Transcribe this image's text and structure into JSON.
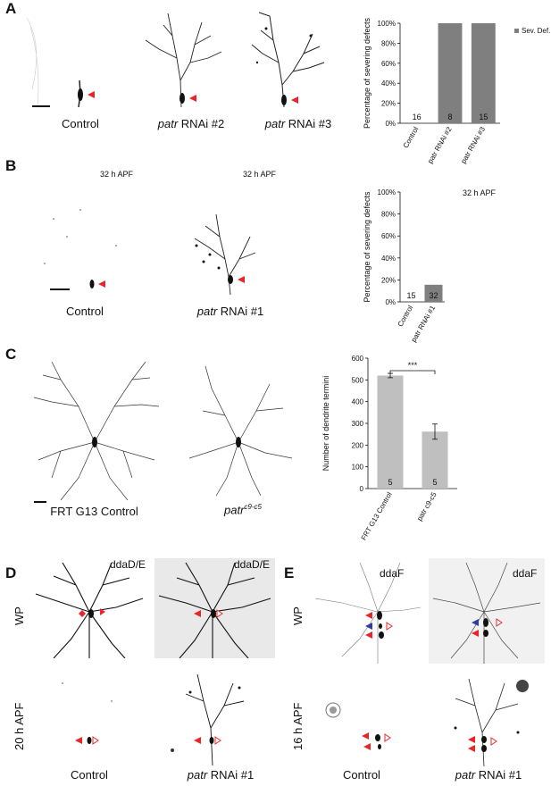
{
  "panels": {
    "A": {
      "letter": "A",
      "labels": [
        "Control",
        "patr",
        "RNAi #2",
        "patr",
        "RNAi #3"
      ]
    },
    "B": {
      "letter": "B",
      "time_label_1": "32 h APF",
      "time_label_2": "32 h APF",
      "labels": [
        "Control",
        "patr",
        "RNAi #1"
      ]
    },
    "C": {
      "letter": "C",
      "label_control": "FRT G13 Control",
      "label_mut": "patr",
      "label_mut_sup": "c9-c5"
    },
    "D": {
      "letter": "D",
      "cell_label_1": "ddaD/E",
      "cell_label_2": "ddaD/E",
      "row_label_1": "WP",
      "row_label_2": "20 h APF",
      "label_control": "Control",
      "label_patr": "patr",
      "label_rnai": "RNAi #1"
    },
    "E": {
      "letter": "E",
      "cell_label_1": "ddaF",
      "cell_label_2": "ddaF",
      "row_label_1": "WP",
      "row_label_2": "16 h APF",
      "label_control": "Control",
      "label_patr": "patr",
      "label_rnai": "RNAi #1"
    }
  },
  "colors": {
    "bar_grey": "#7f7f7f",
    "bar_light": "#bfbfbf",
    "arrow_red": "#e8262a",
    "arrow_blue": "#2b3f9e"
  },
  "chart_data": [
    {
      "type": "bar",
      "panel": "A",
      "categories": [
        "Control",
        "patr RNAi #2",
        "patr RNAi #3"
      ],
      "series": [
        {
          "name": "Sev. Def.",
          "values": [
            0,
            100,
            100
          ]
        }
      ],
      "n_labels": [
        "16",
        "8",
        "15"
      ],
      "ylabel": "Percentage of severing defects",
      "ylim": [
        0,
        100
      ],
      "yticks": [
        "0%",
        "20%",
        "40%",
        "60%",
        "80%",
        "100%"
      ],
      "legend": "top-right"
    },
    {
      "type": "bar",
      "panel": "B",
      "title": "32 h APF",
      "categories": [
        "Control",
        "patr RNAi #1"
      ],
      "values": [
        0,
        15.6
      ],
      "n_labels": [
        "15",
        "32"
      ],
      "ylabel": "Percentage of severing defects",
      "ylim": [
        0,
        100
      ],
      "yticks": [
        "0%",
        "20%",
        "40%",
        "60%",
        "80%",
        "100%"
      ]
    },
    {
      "type": "bar",
      "panel": "C",
      "categories": [
        "FRT G13 Control",
        "patr c9-c5"
      ],
      "values": [
        520,
        262
      ],
      "errors": [
        10,
        35
      ],
      "n_labels": [
        "5",
        "5"
      ],
      "significance": "***",
      "ylabel": "Number of dendrite termini",
      "ylim": [
        0,
        600
      ],
      "yticks": [
        "0",
        "100",
        "200",
        "300",
        "400",
        "500",
        "600"
      ]
    }
  ]
}
